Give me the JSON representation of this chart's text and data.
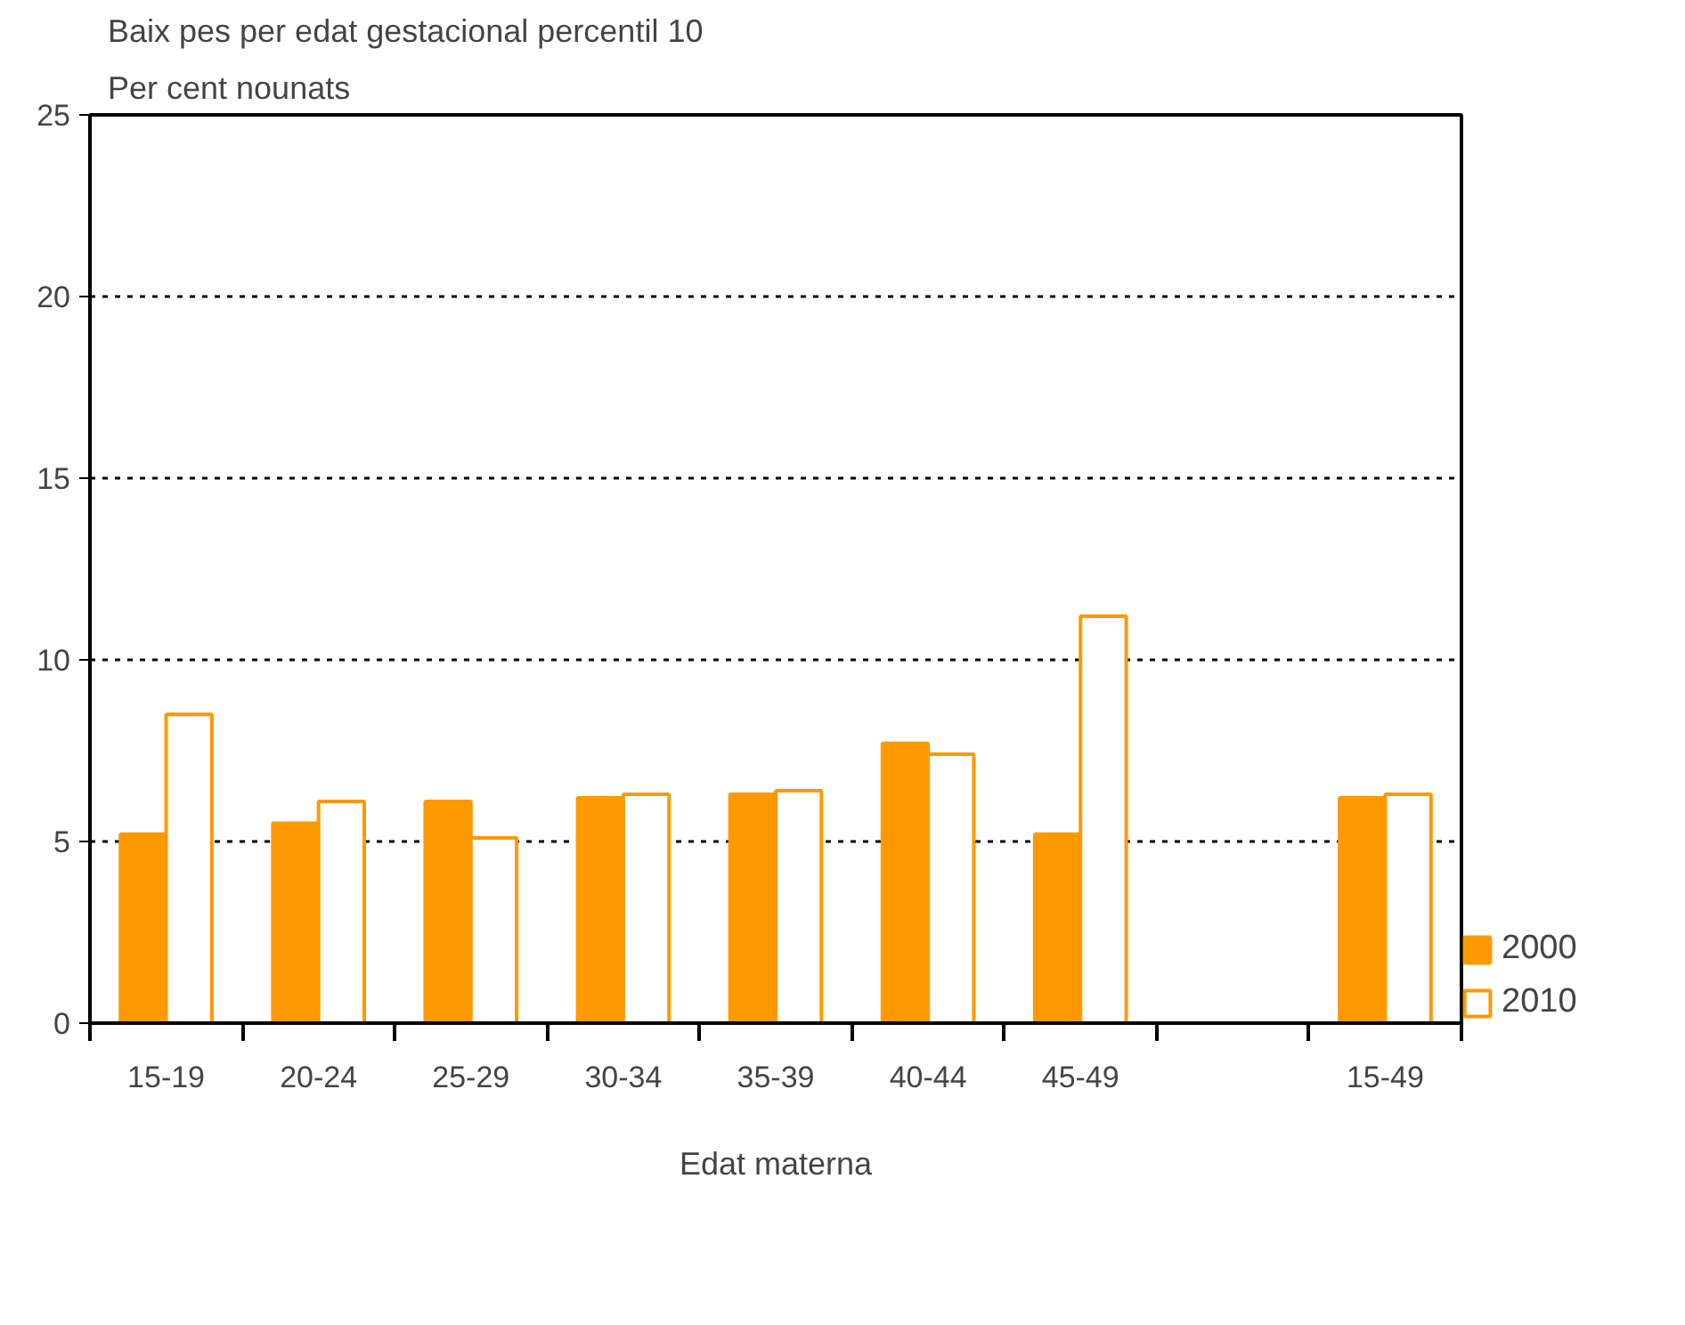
{
  "chart_data": {
    "type": "bar",
    "title": "Baix pes per edat gestacional percentil 10",
    "ylabel": "Per cent nounats",
    "xlabel": "Edat materna",
    "categories": [
      "15-19",
      "20-24",
      "25-29",
      "30-34",
      "35-39",
      "40-44",
      "45-49",
      null,
      "15-49"
    ],
    "series": [
      {
        "name": "2000",
        "color": "#ff9900",
        "values": [
          5.2,
          5.5,
          6.1,
          6.2,
          6.3,
          7.7,
          5.2,
          null,
          6.2
        ]
      },
      {
        "name": "2010",
        "color": "#ffffff",
        "values": [
          8.5,
          6.1,
          5.1,
          6.3,
          6.4,
          7.4,
          11.2,
          null,
          6.3
        ]
      }
    ],
    "ylim": [
      0,
      25
    ],
    "yticks": [
      0,
      5,
      10,
      15,
      20,
      25
    ],
    "grid": "y",
    "legend": "bottom right"
  }
}
